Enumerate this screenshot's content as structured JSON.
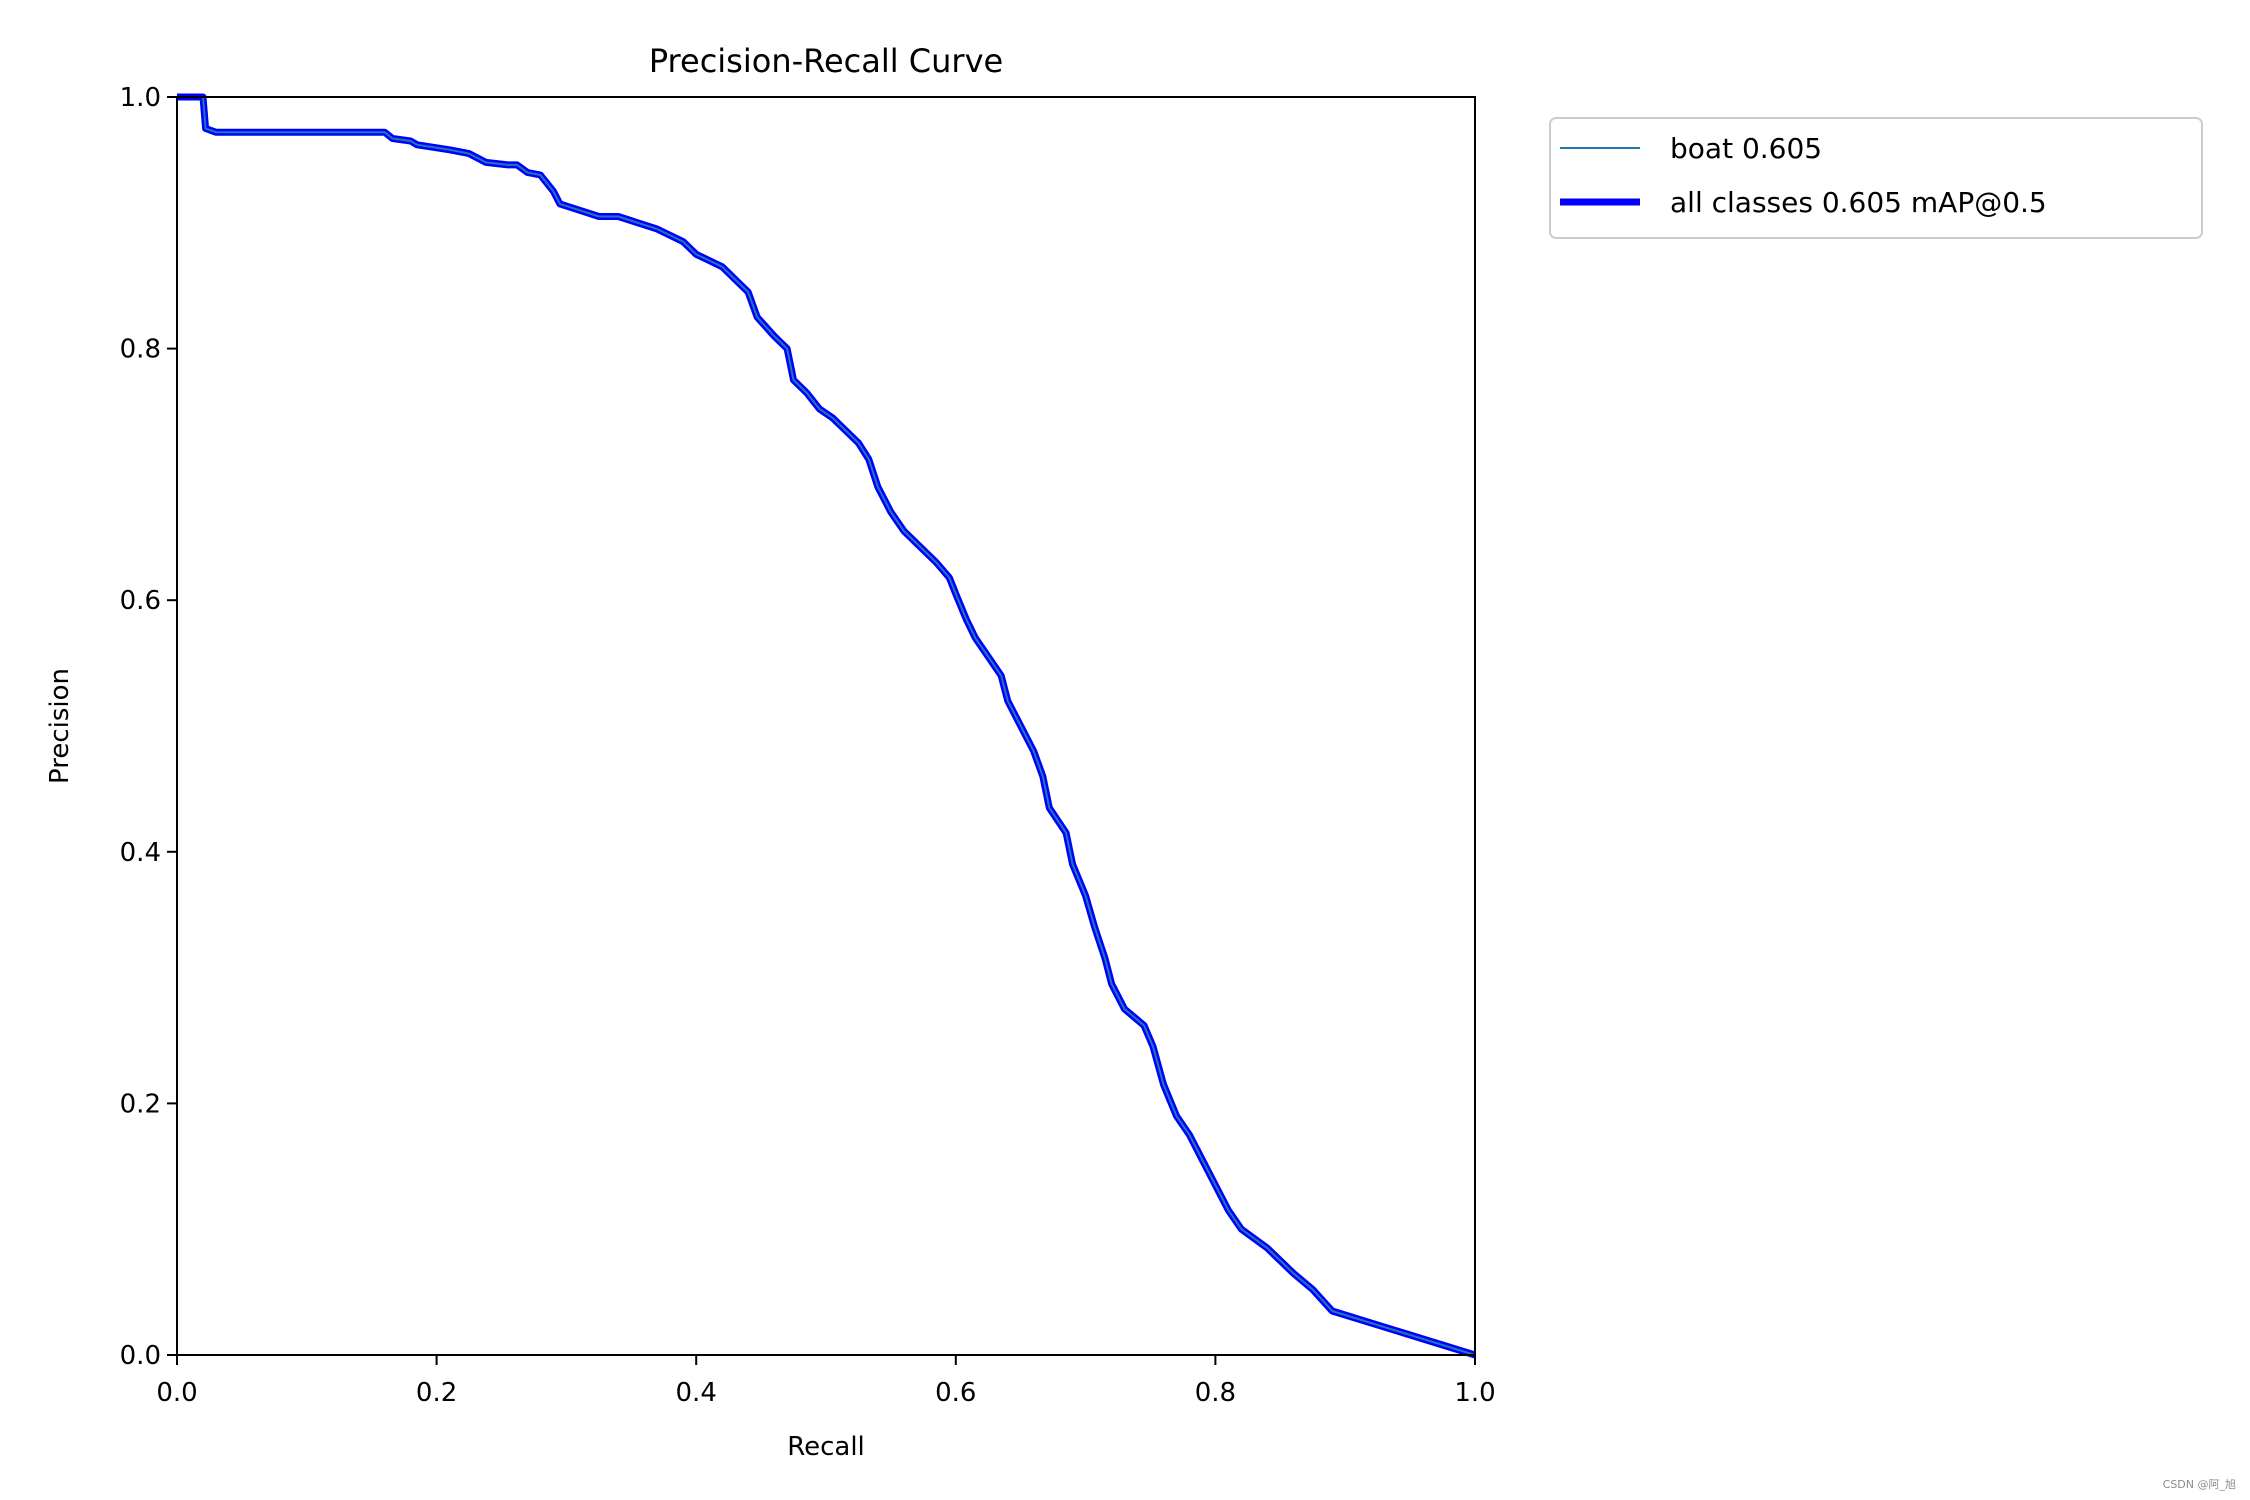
{
  "chart_data": {
    "type": "line",
    "title": "Precision-Recall Curve",
    "xlabel": "Recall",
    "ylabel": "Precision",
    "xlim": [
      0.0,
      1.0
    ],
    "ylim": [
      0.0,
      1.0
    ],
    "xticks": [
      "0.0",
      "0.2",
      "0.4",
      "0.6",
      "0.8",
      "1.0"
    ],
    "yticks": [
      "0.0",
      "0.2",
      "0.4",
      "0.6",
      "0.8",
      "1.0"
    ],
    "grid": false,
    "legend_position": "outside-top-right",
    "series": [
      {
        "name": "boat 0.605",
        "color": "#1f77b4",
        "style": "thin",
        "points": [
          [
            0.0,
            1.0
          ],
          [
            0.02,
            1.0
          ],
          [
            0.022,
            0.975
          ],
          [
            0.03,
            0.972
          ],
          [
            0.16,
            0.972
          ],
          [
            0.166,
            0.967
          ],
          [
            0.18,
            0.965
          ],
          [
            0.185,
            0.962
          ],
          [
            0.21,
            0.958
          ],
          [
            0.225,
            0.955
          ],
          [
            0.238,
            0.948
          ],
          [
            0.255,
            0.946
          ],
          [
            0.262,
            0.946
          ],
          [
            0.27,
            0.94
          ],
          [
            0.28,
            0.938
          ],
          [
            0.29,
            0.925
          ],
          [
            0.295,
            0.915
          ],
          [
            0.31,
            0.91
          ],
          [
            0.325,
            0.905
          ],
          [
            0.34,
            0.905
          ],
          [
            0.355,
            0.9
          ],
          [
            0.37,
            0.895
          ],
          [
            0.38,
            0.89
          ],
          [
            0.39,
            0.885
          ],
          [
            0.4,
            0.875
          ],
          [
            0.41,
            0.87
          ],
          [
            0.42,
            0.865
          ],
          [
            0.43,
            0.855
          ],
          [
            0.44,
            0.845
          ],
          [
            0.447,
            0.825
          ],
          [
            0.46,
            0.81
          ],
          [
            0.47,
            0.8
          ],
          [
            0.475,
            0.775
          ],
          [
            0.485,
            0.765
          ],
          [
            0.495,
            0.752
          ],
          [
            0.505,
            0.745
          ],
          [
            0.515,
            0.735
          ],
          [
            0.525,
            0.725
          ],
          [
            0.533,
            0.712
          ],
          [
            0.54,
            0.69
          ],
          [
            0.55,
            0.67
          ],
          [
            0.56,
            0.655
          ],
          [
            0.575,
            0.64
          ],
          [
            0.585,
            0.63
          ],
          [
            0.595,
            0.618
          ],
          [
            0.6,
            0.605
          ],
          [
            0.608,
            0.585
          ],
          [
            0.615,
            0.57
          ],
          [
            0.625,
            0.555
          ],
          [
            0.635,
            0.54
          ],
          [
            0.64,
            0.52
          ],
          [
            0.65,
            0.5
          ],
          [
            0.66,
            0.48
          ],
          [
            0.667,
            0.46
          ],
          [
            0.672,
            0.435
          ],
          [
            0.685,
            0.415
          ],
          [
            0.69,
            0.39
          ],
          [
            0.7,
            0.365
          ],
          [
            0.707,
            0.34
          ],
          [
            0.715,
            0.315
          ],
          [
            0.72,
            0.295
          ],
          [
            0.73,
            0.275
          ],
          [
            0.745,
            0.262
          ],
          [
            0.752,
            0.245
          ],
          [
            0.76,
            0.215
          ],
          [
            0.77,
            0.19
          ],
          [
            0.78,
            0.175
          ],
          [
            0.79,
            0.155
          ],
          [
            0.8,
            0.135
          ],
          [
            0.81,
            0.115
          ],
          [
            0.82,
            0.1
          ],
          [
            0.84,
            0.085
          ],
          [
            0.86,
            0.065
          ],
          [
            0.875,
            0.052
          ],
          [
            0.89,
            0.035
          ],
          [
            1.0,
            0.0
          ]
        ]
      },
      {
        "name": "all classes 0.605 mAP@0.5",
        "color": "#0000ff",
        "style": "thick",
        "same_as": 0
      }
    ]
  },
  "watermark": "CSDN @阿_旭"
}
